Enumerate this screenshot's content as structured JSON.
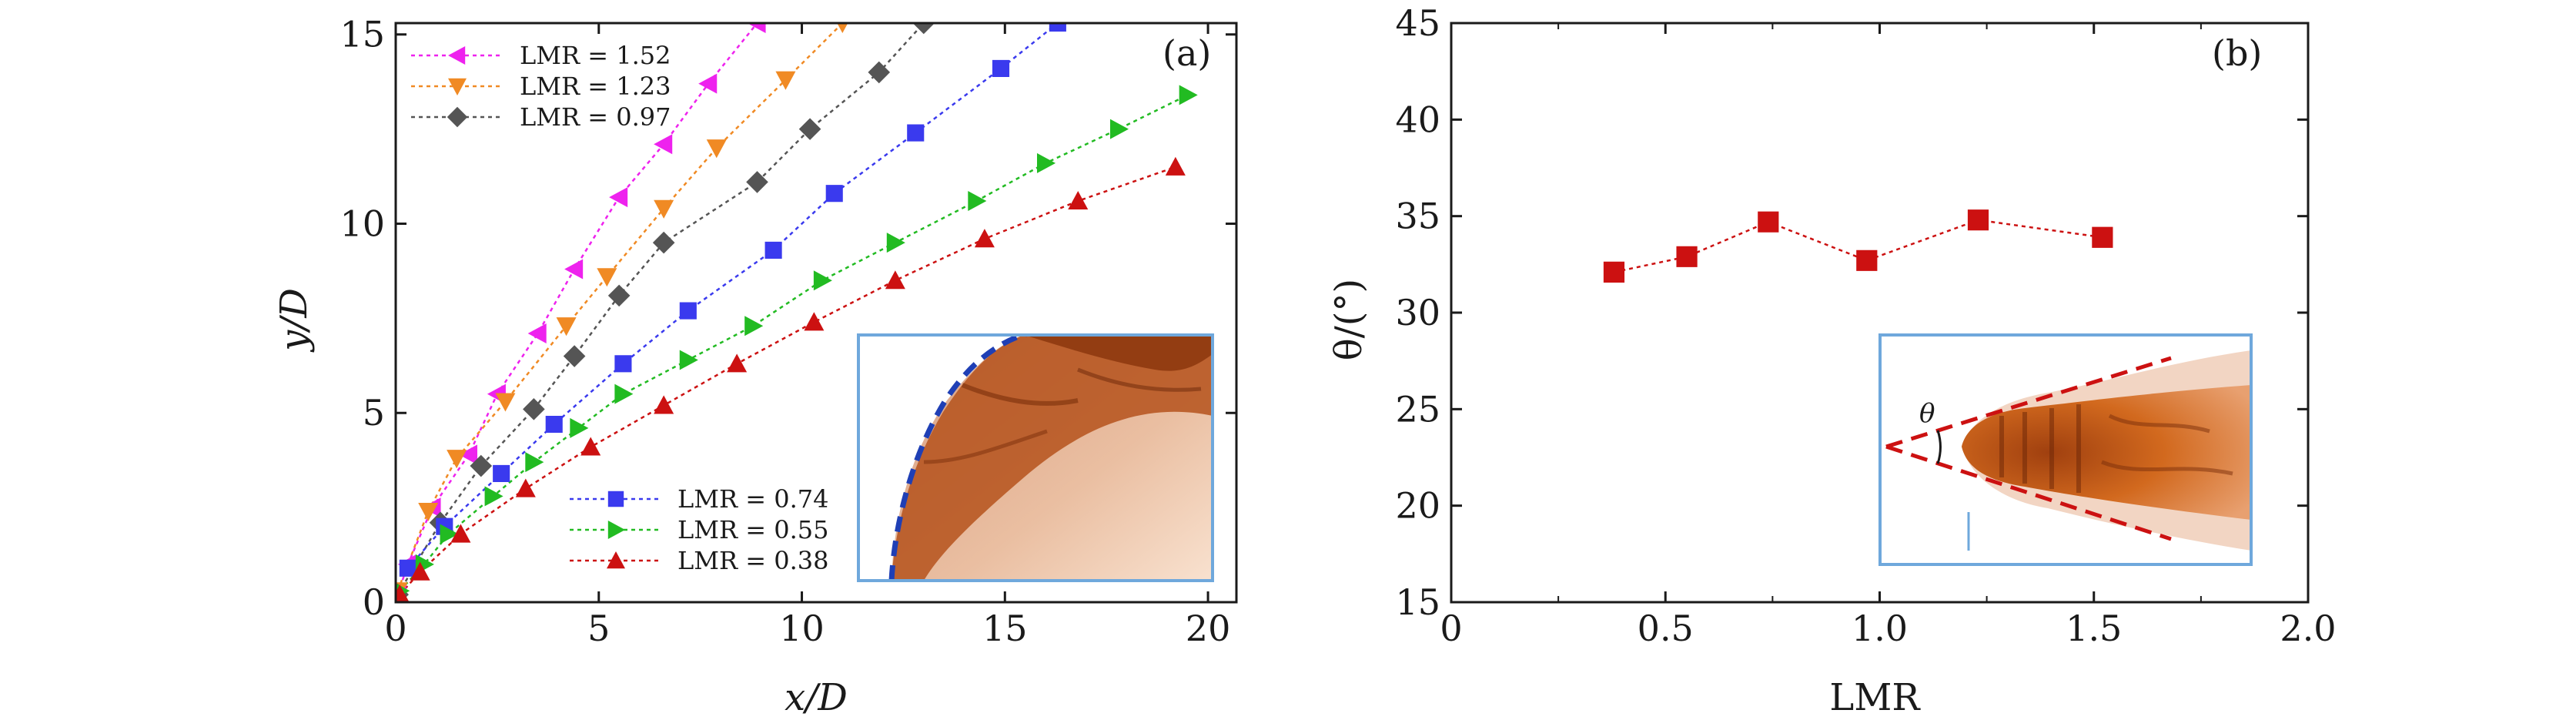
{
  "chart_data": [
    {
      "panel_label": "(a)",
      "type": "scatter",
      "xlabel": "x/D",
      "ylabel": "y/D",
      "xlim": [
        0,
        20.7
      ],
      "ylim": [
        0,
        15.3
      ],
      "xticks": [
        "0",
        "5",
        "10",
        "15",
        "20"
      ],
      "xtick_values": [
        0,
        5,
        10,
        15,
        20
      ],
      "yticks": [
        "0",
        "5",
        "10",
        "15"
      ],
      "ytick_values": [
        0,
        5,
        10,
        15
      ],
      "series": [
        {
          "name": "LMR = 1.52",
          "marker": "triangle-left",
          "color": "#ee22ee",
          "x": [
            0.05,
            0.3,
            0.9,
            1.8,
            2.5,
            3.5,
            4.4,
            5.5,
            6.6,
            7.7,
            8.9
          ],
          "y": [
            0.2,
            1.0,
            2.5,
            3.9,
            5.5,
            7.1,
            8.8,
            10.7,
            12.1,
            13.7,
            15.3
          ]
        },
        {
          "name": "LMR = 1.23",
          "marker": "triangle-down",
          "color": "#f08a24",
          "x": [
            0.05,
            0.8,
            1.5,
            2.7,
            4.2,
            5.2,
            6.6,
            7.9,
            9.6,
            11.0
          ],
          "y": [
            0.3,
            2.4,
            3.8,
            5.3,
            7.3,
            8.6,
            10.4,
            12.0,
            13.8,
            15.3
          ]
        },
        {
          "name": "LMR = 0.97",
          "marker": "diamond",
          "color": "#555555",
          "x": [
            0.05,
            1.1,
            2.1,
            3.4,
            4.4,
            5.5,
            6.6,
            8.9,
            10.2,
            11.9,
            13.0
          ],
          "y": [
            0.2,
            2.1,
            3.6,
            5.1,
            6.5,
            8.1,
            9.5,
            11.1,
            12.5,
            14.0,
            15.3
          ]
        },
        {
          "name": "LMR = 0.74",
          "marker": "square",
          "color": "#3a3aee",
          "x": [
            0.3,
            1.2,
            2.6,
            3.9,
            5.6,
            7.2,
            9.3,
            10.8,
            12.8,
            14.9,
            16.3
          ],
          "y": [
            0.9,
            2.0,
            3.4,
            4.7,
            6.3,
            7.7,
            9.3,
            10.8,
            12.4,
            14.1,
            15.3
          ]
        },
        {
          "name": "LMR = 0.55",
          "marker": "triangle-right",
          "color": "#22bb22",
          "x": [
            0.1,
            0.7,
            1.3,
            2.4,
            3.4,
            4.5,
            5.6,
            7.2,
            8.8,
            10.5,
            12.3,
            14.3,
            16.0,
            17.8,
            19.5
          ],
          "y": [
            0.3,
            1.0,
            1.8,
            2.8,
            3.7,
            4.6,
            5.5,
            6.4,
            7.3,
            8.5,
            9.5,
            10.6,
            11.6,
            12.5,
            13.4
          ]
        },
        {
          "name": "LMR = 0.38",
          "marker": "triangle-up",
          "color": "#cc1111",
          "x": [
            0.1,
            0.6,
            1.6,
            3.2,
            4.8,
            6.6,
            8.4,
            10.3,
            12.3,
            14.5,
            16.8,
            19.2
          ],
          "y": [
            0.2,
            0.8,
            1.8,
            3.0,
            4.1,
            5.2,
            6.3,
            7.4,
            8.5,
            9.6,
            10.6,
            11.5
          ]
        }
      ],
      "legend_groups": [
        {
          "placement": "top-left",
          "entries": [
            0,
            1,
            2
          ]
        },
        {
          "placement": "bottom-center",
          "entries": [
            3,
            4,
            5
          ]
        }
      ],
      "inset": {
        "description_label": "",
        "frame_color": "#6fa8dc"
      }
    },
    {
      "panel_label": "(b)",
      "type": "scatter",
      "xlabel": "LMR",
      "ylabel": "θ/(°)",
      "xlim": [
        0,
        2.0
      ],
      "ylim": [
        15,
        45
      ],
      "xticks": [
        "0",
        "0.5",
        "1.0",
        "1.5",
        "2.0"
      ],
      "xtick_values": [
        0,
        0.5,
        1.0,
        1.5,
        2.0
      ],
      "yticks": [
        "15",
        "20",
        "25",
        "30",
        "35",
        "40",
        "45"
      ],
      "ytick_values": [
        15,
        20,
        25,
        30,
        35,
        40,
        45
      ],
      "series": [
        {
          "name": "theta",
          "marker": "square",
          "color": "#cc1111",
          "x": [
            0.38,
            0.55,
            0.74,
            0.97,
            1.23,
            1.52
          ],
          "y": [
            32.1,
            32.9,
            34.7,
            32.7,
            34.8,
            33.9
          ]
        }
      ],
      "inset": {
        "angle_label": "θ",
        "frame_color": "#6fa8dc"
      }
    }
  ]
}
